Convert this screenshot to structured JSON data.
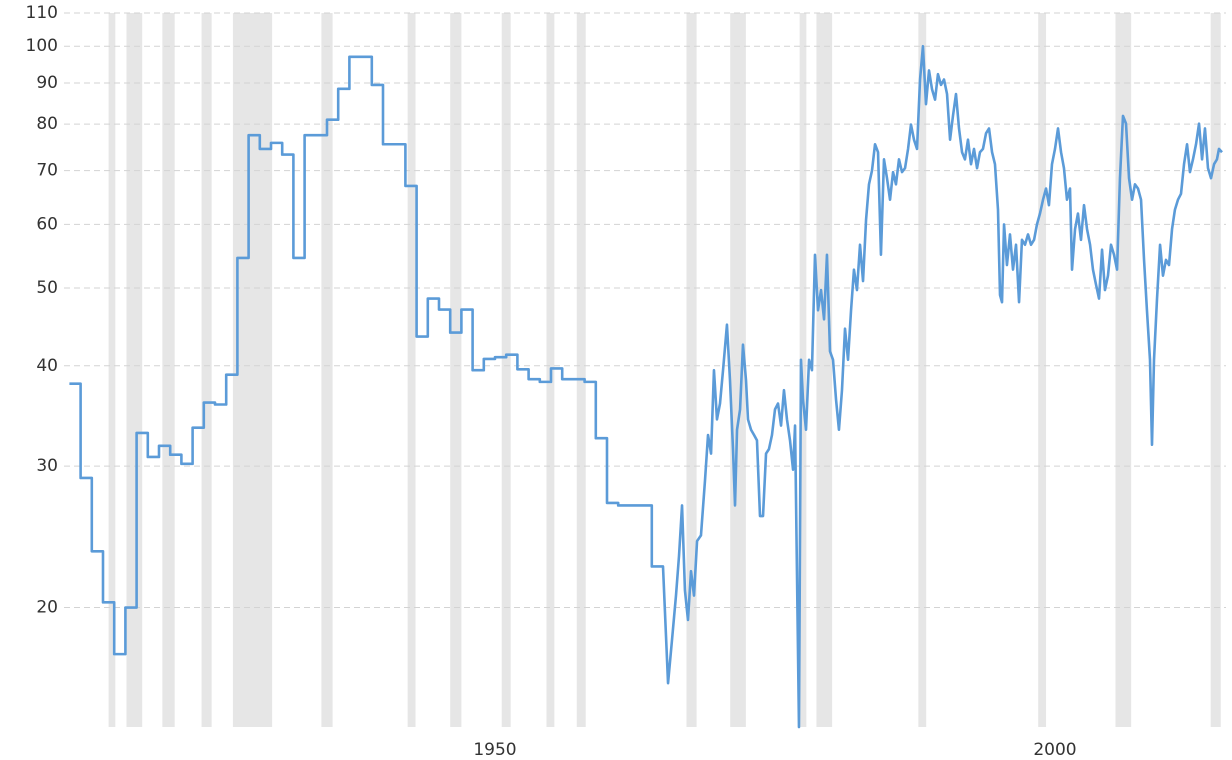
{
  "chart_data": {
    "type": "line",
    "color": "#5b9bd8",
    "shade_color": "#e6e6e6",
    "ylog": true,
    "grid": true,
    "xlim": [
      1912,
      2015
    ],
    "xticks": [
      1950,
      2000
    ],
    "ylim": [
      14.2,
      110
    ],
    "yticks": [
      20,
      30,
      40,
      50,
      60,
      70,
      80,
      90,
      100,
      110
    ],
    "shaded_ranges": [
      [
        1915.5,
        1916.1
      ],
      [
        1917.1,
        1918.5
      ],
      [
        1920.3,
        1921.4
      ],
      [
        1923.8,
        1924.7
      ],
      [
        1926.6,
        1930.1
      ],
      [
        1934.5,
        1935.5
      ],
      [
        1942.2,
        1942.9
      ],
      [
        1946.0,
        1947.0
      ],
      [
        1950.6,
        1951.4
      ],
      [
        1954.6,
        1955.3
      ],
      [
        1957.3,
        1958.1
      ],
      [
        1967.1,
        1968.0
      ],
      [
        1971.0,
        1972.4
      ],
      [
        1977.2,
        1977.8
      ],
      [
        1978.7,
        1980.1
      ],
      [
        1987.8,
        1988.5
      ],
      [
        1998.5,
        1999.2
      ],
      [
        2005.4,
        2006.8
      ],
      [
        2013.9,
        2014.8
      ]
    ],
    "x": [
      1912,
      1913,
      1913,
      1914,
      1914,
      1915,
      1915,
      1916,
      1916,
      1917,
      1917,
      1918,
      1918,
      1919,
      1919,
      1920,
      1920,
      1921,
      1921,
      1922,
      1922,
      1923,
      1923,
      1924,
      1924,
      1925,
      1925,
      1926,
      1926,
      1927,
      1927,
      1928,
      1928,
      1929,
      1929,
      1930,
      1930,
      1931,
      1931,
      1932,
      1932,
      1933,
      1933,
      1935,
      1935,
      1936,
      1936,
      1937,
      1937,
      1939,
      1939,
      1940,
      1940,
      1942,
      1942,
      1943,
      1943,
      1944,
      1944,
      1945,
      1945,
      1946,
      1946,
      1947,
      1947,
      1948,
      1948,
      1949,
      1949,
      1950,
      1950,
      1951,
      1951,
      1952,
      1952,
      1953,
      1953,
      1954,
      1954,
      1955,
      1955,
      1956,
      1956,
      1958,
      1958,
      1959,
      1959,
      1960,
      1960,
      1961,
      1961,
      1964,
      1964,
      1965,
      1965.45,
      1965.8,
      1966.16,
      1966.43,
      1966.7,
      1966.96,
      1967.23,
      1967.5,
      1967.77,
      1968.04,
      1968.39,
      1968.75,
      1969.02,
      1969.29,
      1969.55,
      1969.82,
      1970.09,
      1970.36,
      1970.71,
      1970.98,
      1971.25,
      1971.43,
      1971.61,
      1971.88,
      1972.14,
      1972.41,
      1972.59,
      1972.86,
      1973.13,
      1973.39,
      1973.66,
      1973.93,
      1974.2,
      1974.46,
      1974.73,
      1975.0,
      1975.27,
      1975.54,
      1975.8,
      1976.07,
      1976.34,
      1976.61,
      1976.79,
      1976.96,
      1977.14,
      1977.32,
      1977.5,
      1977.77,
      1978.04,
      1978.3,
      1978.57,
      1978.84,
      1979.11,
      1979.38,
      1979.64,
      1979.91,
      1980.18,
      1980.45,
      1980.71,
      1980.98,
      1981.25,
      1981.52,
      1981.79,
      1982.05,
      1982.32,
      1982.59,
      1982.86,
      1983.13,
      1983.39,
      1983.66,
      1983.93,
      1984.2,
      1984.46,
      1984.73,
      1985.0,
      1985.27,
      1985.54,
      1985.8,
      1986.07,
      1986.34,
      1986.61,
      1986.88,
      1987.14,
      1987.41,
      1987.68,
      1987.95,
      1988.21,
      1988.48,
      1988.75,
      1989.02,
      1989.29,
      1989.55,
      1989.82,
      1990.09,
      1990.36,
      1990.63,
      1990.89,
      1991.16,
      1991.43,
      1991.7,
      1991.96,
      1992.23,
      1992.5,
      1992.77,
      1993.04,
      1993.3,
      1993.57,
      1993.84,
      1994.11,
      1994.38,
      1994.64,
      1994.91,
      1995.09,
      1995.27,
      1995.45,
      1995.71,
      1995.98,
      1996.25,
      1996.52,
      1996.79,
      1997.05,
      1997.32,
      1997.59,
      1997.86,
      1998.13,
      1998.39,
      1998.66,
      1998.93,
      1999.2,
      1999.46,
      1999.73,
      2000.0,
      2000.27,
      2000.54,
      2000.8,
      2001.07,
      2001.34,
      2001.52,
      2001.79,
      2002.05,
      2002.32,
      2002.59,
      2002.86,
      2003.13,
      2003.39,
      2003.66,
      2003.93,
      2004.2,
      2004.46,
      2004.73,
      2005.0,
      2005.27,
      2005.54,
      2005.8,
      2006.07,
      2006.34,
      2006.61,
      2006.88,
      2007.14,
      2007.41,
      2007.68,
      2007.95,
      2008.21,
      2008.48,
      2008.66,
      2008.84,
      2009.11,
      2009.38,
      2009.64,
      2009.91,
      2010.18,
      2010.45,
      2010.71,
      2010.98,
      2011.25,
      2011.52,
      2011.79,
      2012.05,
      2012.32,
      2012.59,
      2012.86,
      2013.13,
      2013.39,
      2013.66,
      2013.93,
      2014.2,
      2014.46,
      2014.64,
      2014.91
    ],
    "values": [
      38,
      38,
      29,
      29,
      23.5,
      23.5,
      20.3,
      20.3,
      17.5,
      17.5,
      20,
      20,
      33,
      33,
      30.8,
      30.8,
      31.8,
      31.8,
      31,
      31,
      30.2,
      30.2,
      33.5,
      33.5,
      36,
      36,
      35.8,
      35.8,
      39,
      39,
      54.5,
      54.5,
      77.5,
      77.5,
      74.5,
      74.5,
      75.8,
      75.8,
      73.3,
      73.3,
      54.5,
      54.5,
      77.5,
      77.5,
      81,
      81,
      88.5,
      88.5,
      97,
      97,
      89.5,
      89.5,
      75.5,
      75.5,
      67,
      67,
      43.5,
      43.5,
      48.5,
      48.5,
      47,
      47,
      44,
      44,
      47,
      47,
      39.5,
      39.5,
      40.8,
      40.8,
      41,
      41,
      41.3,
      41.3,
      39.6,
      39.6,
      38.5,
      38.5,
      38.2,
      38.2,
      39.7,
      39.7,
      38.5,
      38.5,
      38.2,
      38.2,
      32.5,
      32.5,
      27,
      27,
      26.8,
      26.8,
      22.5,
      22.5,
      16.1,
      18.2,
      20.7,
      23.2,
      26.8,
      21,
      19.3,
      22.2,
      20.7,
      24.2,
      24.6,
      28.8,
      32.8,
      31.1,
      39.5,
      34.3,
      35.9,
      39.5,
      45,
      38.4,
      31.5,
      26.8,
      33.3,
      35.3,
      42.5,
      38.4,
      34.3,
      33.3,
      32.8,
      32.3,
      26,
      26,
      31.1,
      31.5,
      32.8,
      35.3,
      35.9,
      33.7,
      37.3,
      34.3,
      32.3,
      29.7,
      33.7,
      22.2,
      14.2,
      40.7,
      36.3,
      33.3,
      40.7,
      39.5,
      55,
      46.9,
      49.7,
      45.7,
      55,
      41.7,
      40.7,
      36.3,
      33.3,
      37.3,
      44.5,
      40.7,
      46.9,
      52.7,
      49.7,
      56.6,
      51,
      60.8,
      67.3,
      70,
      75.5,
      73.8,
      55,
      72.3,
      68.5,
      64.4,
      69.7,
      67.3,
      72.3,
      69.7,
      70.5,
      74.5,
      79.9,
      76.5,
      74.5,
      90.9,
      100,
      84.7,
      93.3,
      88.4,
      85.8,
      92.3,
      89.5,
      90.9,
      87.2,
      76.5,
      81.9,
      87.2,
      79,
      73.8,
      72.3,
      76.5,
      71.3,
      74.5,
      70.5,
      73.8,
      74.5,
      77.9,
      79,
      73.8,
      71.3,
      62.6,
      49,
      48,
      60,
      53.4,
      58.3,
      52.7,
      56.6,
      48,
      57.4,
      56.6,
      58.3,
      56.6,
      57.4,
      60,
      61.9,
      64.4,
      66.5,
      63.4,
      71.3,
      74.5,
      79,
      73.8,
      70.5,
      64.4,
      66.5,
      52.7,
      59.2,
      61.9,
      57.4,
      63.4,
      59.2,
      56.6,
      52.7,
      50.5,
      48.5,
      55.8,
      49.7,
      51.8,
      56.6,
      55,
      52.7,
      68.5,
      81.9,
      80.1,
      68.5,
      64.4,
      67.3,
      66.5,
      64.4,
      54.2,
      46.9,
      40.7,
      31.9,
      40.7,
      48.5,
      56.6,
      51.8,
      54.2,
      53.4,
      59.2,
      62.6,
      64.4,
      65.5,
      71.3,
      75.5,
      69.7,
      72.3,
      75.5,
      80.1,
      72.3,
      79,
      70.5,
      68.5,
      71.3,
      72.3,
      74.5,
      73.8
    ]
  }
}
